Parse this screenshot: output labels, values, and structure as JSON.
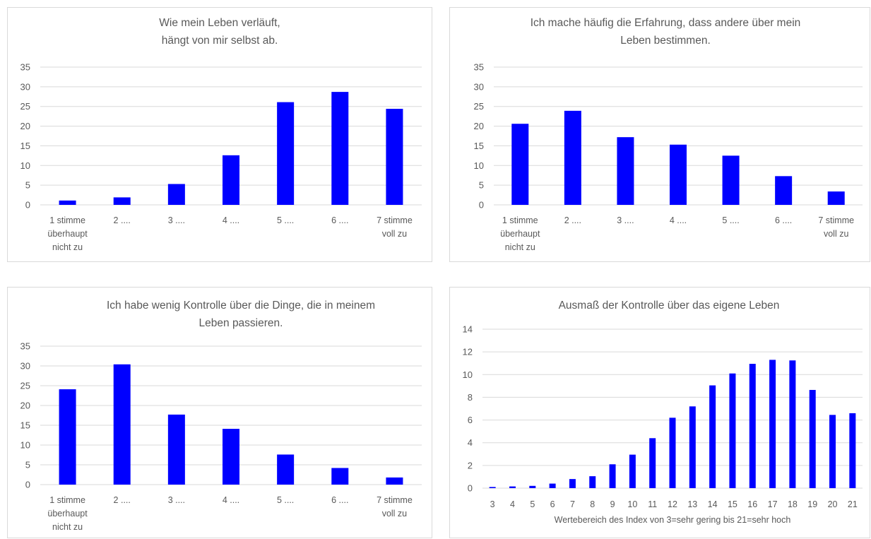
{
  "colors": {
    "bar": "#0000ff",
    "grid": "#d9d9d9",
    "text": "#595959",
    "border": "#d9d9d9"
  },
  "chart_data": [
    {
      "type": "bar",
      "title": [
        "Wie mein Leben verläuft,",
        "hängt von mir selbst ab."
      ],
      "categories": [
        [
          "1  stimme",
          "überhaupt",
          "nicht zu"
        ],
        [
          "2 ...."
        ],
        [
          "3 ...."
        ],
        [
          "4 ...."
        ],
        [
          "5 ...."
        ],
        [
          "6 ...."
        ],
        [
          "7 stimme",
          "voll zu"
        ]
      ],
      "values": [
        1.1,
        1.9,
        5.3,
        12.6,
        26.1,
        28.7,
        24.4
      ],
      "yticks": [
        "0",
        "5",
        "10",
        "15",
        "20",
        "25",
        "30",
        "35"
      ],
      "ylim": [
        0,
        35
      ],
      "xlabel": "",
      "grid": true,
      "legend": "none"
    },
    {
      "type": "bar",
      "title": [
        "Ich mache häufig die Erfahrung, dass andere über mein",
        "Leben bestimmen."
      ],
      "categories": [
        [
          "1  stimme",
          "überhaupt",
          "nicht zu"
        ],
        [
          "2 ...."
        ],
        [
          "3 ...."
        ],
        [
          "4 ...."
        ],
        [
          "5 ...."
        ],
        [
          "6 ...."
        ],
        [
          "7 stimme",
          "voll zu"
        ]
      ],
      "values": [
        20.6,
        23.9,
        17.2,
        15.3,
        12.5,
        7.3,
        3.4
      ],
      "yticks": [
        "0",
        "5",
        "10",
        "15",
        "20",
        "25",
        "30",
        "35"
      ],
      "ylim": [
        0,
        35
      ],
      "xlabel": "",
      "grid": true,
      "legend": "none"
    },
    {
      "type": "bar",
      "title": [
        "Ich habe wenig Kontrolle über die Dinge, die in meinem",
        "Leben passieren."
      ],
      "categories": [
        [
          "1  stimme",
          "überhaupt",
          "nicht zu"
        ],
        [
          "2 ...."
        ],
        [
          "3 ...."
        ],
        [
          "4 ...."
        ],
        [
          "5 ...."
        ],
        [
          "6 ...."
        ],
        [
          "7 stimme",
          "voll zu"
        ]
      ],
      "values": [
        24.1,
        30.4,
        17.7,
        14.1,
        7.6,
        4.2,
        1.8
      ],
      "yticks": [
        "0",
        "5",
        "10",
        "15",
        "20",
        "25",
        "30",
        "35"
      ],
      "ylim": [
        0,
        35
      ],
      "xlabel": "",
      "grid": true,
      "legend": "none"
    },
    {
      "type": "bar",
      "title": [
        "Ausmaß der Kontrolle über das eigene Leben"
      ],
      "categories": [
        [
          "3"
        ],
        [
          "4"
        ],
        [
          "5"
        ],
        [
          "6"
        ],
        [
          "7"
        ],
        [
          "8"
        ],
        [
          "9"
        ],
        [
          "10"
        ],
        [
          "11"
        ],
        [
          "12"
        ],
        [
          "13"
        ],
        [
          "14"
        ],
        [
          "15"
        ],
        [
          "16"
        ],
        [
          "17"
        ],
        [
          "18"
        ],
        [
          "19"
        ],
        [
          "20"
        ],
        [
          "21"
        ]
      ],
      "values": [
        0.1,
        0.15,
        0.2,
        0.4,
        0.8,
        1.05,
        2.1,
        2.95,
        4.4,
        6.2,
        7.2,
        9.05,
        10.1,
        10.95,
        11.3,
        11.25,
        8.65,
        6.45,
        6.6
      ],
      "yticks": [
        "0",
        "2",
        "4",
        "6",
        "8",
        "10",
        "12",
        "14"
      ],
      "ylim": [
        0,
        14
      ],
      "xlabel": "Wertebereich des Index von 3=sehr gering bis 21=sehr hoch",
      "grid": true,
      "legend": "none"
    }
  ]
}
